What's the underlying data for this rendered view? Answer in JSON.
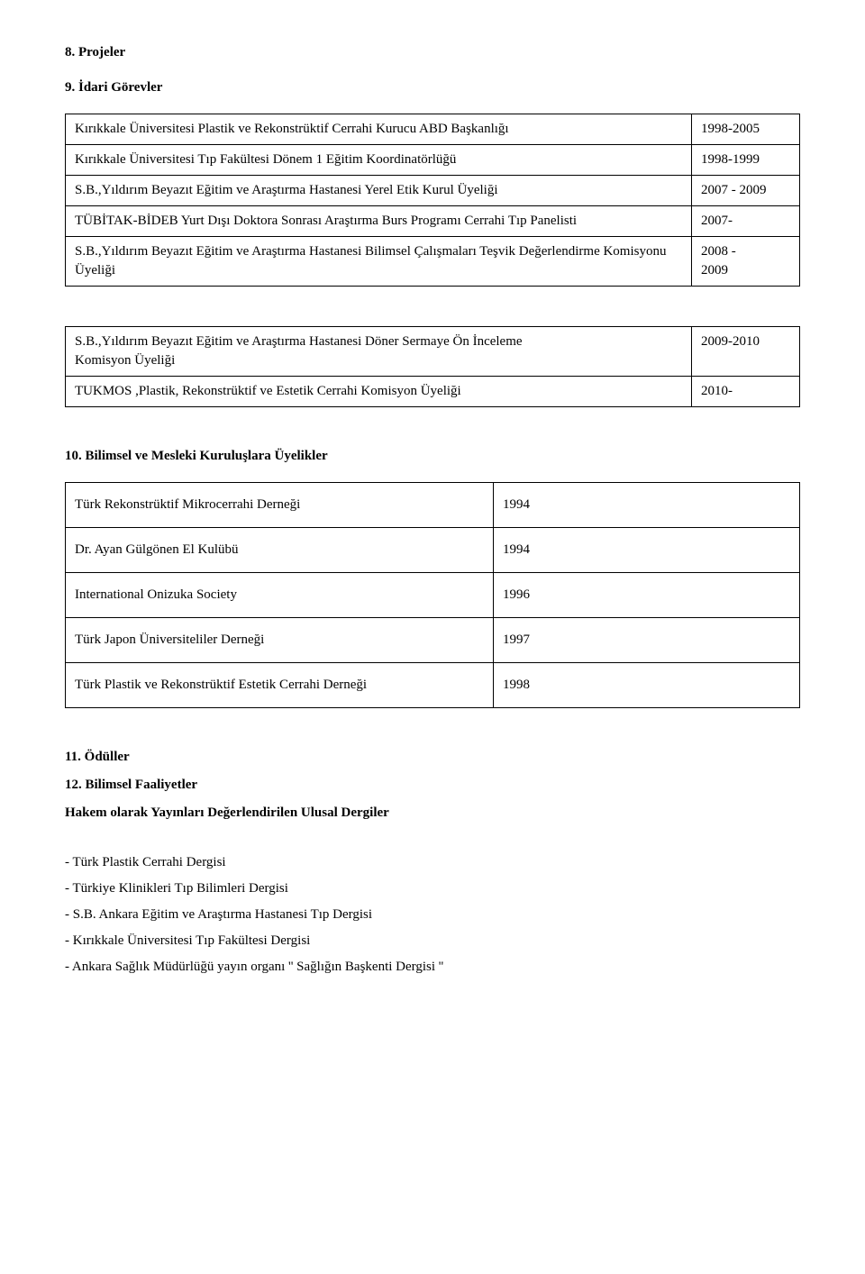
{
  "headings": {
    "section8": "8.   Projeler",
    "section9": "9.   İdari Görevler",
    "section10": "10. Bilimsel ve Mesleki Kuruluşlara Üyelikler",
    "section11": "11. Ödüller",
    "section12": "12. Bilimsel Faaliyetler",
    "journalsSub": "Hakem olarak Yayınları Değerlendirilen  Ulusal  Dergiler"
  },
  "duties": {
    "rows": [
      {
        "text": "Kırıkkale Üniversitesi  Plastik ve Rekonstrüktif Cerrahi Kurucu ABD Başkanlığı",
        "date": "1998-2005"
      },
      {
        "text": "Kırıkkale Üniversitesi  Tıp Fakültesi Dönem 1 Eğitim Koordinatörlüğü",
        "date": "1998-1999"
      },
      {
        "text": "S.B.,Yıldırım Beyazıt  Eğitim ve Araştırma Hastanesi Yerel Etik Kurul Üyeliği",
        "date": "2007 - 2009"
      },
      {
        "text": "TÜBİTAK-BİDEB Yurt Dışı Doktora Sonrası Araştırma Burs Programı Cerrahi Tıp Panelisti",
        "date": "2007-"
      },
      {
        "text": "S.B.,Yıldırım Beyazıt  Eğitim ve Araştırma Hastanesi Bilimsel Çalışmaları  Teşvik Değerlendirme Komisyonu Üyeliği",
        "date": "2008 -\n2009"
      }
    ]
  },
  "duties2": {
    "rows": [
      {
        "text": "S.B.,Yıldırım Beyazıt  Eğitim ve Araştırma Hastanesi Döner Sermaye Ön İnceleme\nKomisyon Üyeliği",
        "date": "2009-2010"
      },
      {
        "text": "TUKMOS ,Plastik, Rekonstrüktif ve Estetik Cerrahi Komisyon Üyeliği",
        "date": "2010-"
      }
    ]
  },
  "memberships": {
    "rows": [
      {
        "text": "Türk Rekonstrüktif Mikrocerrahi Derneği",
        "date": "1994"
      },
      {
        "text": "Dr. Ayan Gülgönen El Kulübü",
        "date": "1994"
      },
      {
        "text": "International Onizuka Society",
        "date": "1996"
      },
      {
        "text": "Türk Japon Üniversiteliler Derneği",
        "date": "1997"
      },
      {
        "text": "Türk Plastik ve Rekonstrüktif Estetik Cerrahi Derneği",
        "date": "1998"
      }
    ]
  },
  "journals": [
    "- Türk Plastik Cerrahi Dergisi",
    "- Türkiye Klinikleri  Tıp Bilimleri Dergisi",
    "- S.B. Ankara Eğitim ve Araştırma Hastanesi Tıp Dergisi",
    "- Kırıkkale Üniversitesi Tıp Fakültesi Dergisi",
    "- Ankara Sağlık Müdürlüğü yayın organı '' Sağlığın Başkenti Dergisi ''"
  ]
}
